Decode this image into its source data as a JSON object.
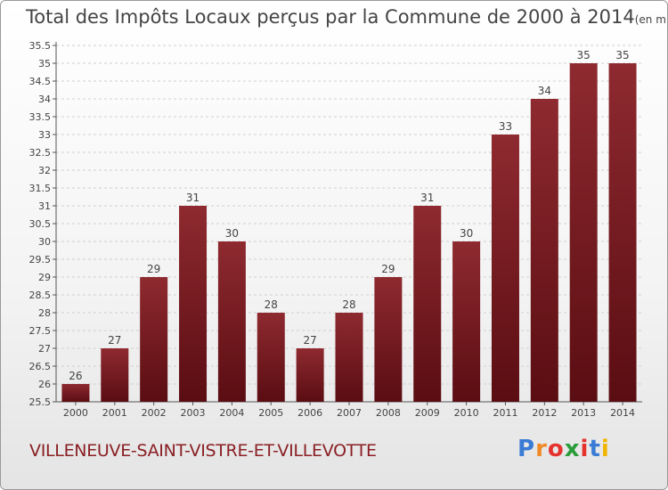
{
  "title": "Total des Impôts Locaux perçus par la Commune de 2000 à 2014",
  "title_unit": "(en milliers d'€)",
  "commune": "VILLENEUVE-SAINT-VISTRE-ET-VILLEVOTTE",
  "logo": {
    "letters": [
      "P",
      "r",
      "o",
      "x",
      "i",
      "t",
      "i"
    ],
    "colors": [
      "#3a7bd5",
      "#f08a24",
      "#e5322d",
      "#2a9d3a",
      "#e5322d",
      "#3a7bd5",
      "#f0b400"
    ]
  },
  "colors": {
    "bar": "#7a1a1f",
    "bar_light": "#8e2a30",
    "bar_dark": "#5a0d12"
  },
  "chart_data": {
    "type": "bar",
    "categories": [
      "2000",
      "2001",
      "2002",
      "2003",
      "2004",
      "2005",
      "2006",
      "2007",
      "2008",
      "2009",
      "2010",
      "2011",
      "2012",
      "2013",
      "2014"
    ],
    "values": [
      26,
      27,
      29,
      31,
      30,
      28,
      27,
      28,
      29,
      31,
      30,
      33,
      34,
      35,
      35
    ],
    "ylim": [
      25.5,
      35.5
    ],
    "yticks": [
      "25.5",
      "26",
      "26.5",
      "27",
      "27.5",
      "28",
      "28.5",
      "29",
      "29.5",
      "30",
      "30.5",
      "31",
      "31.5",
      "32",
      "32.5",
      "33",
      "33.5",
      "34",
      "34.5",
      "35",
      "35.5"
    ],
    "grid": true
  }
}
